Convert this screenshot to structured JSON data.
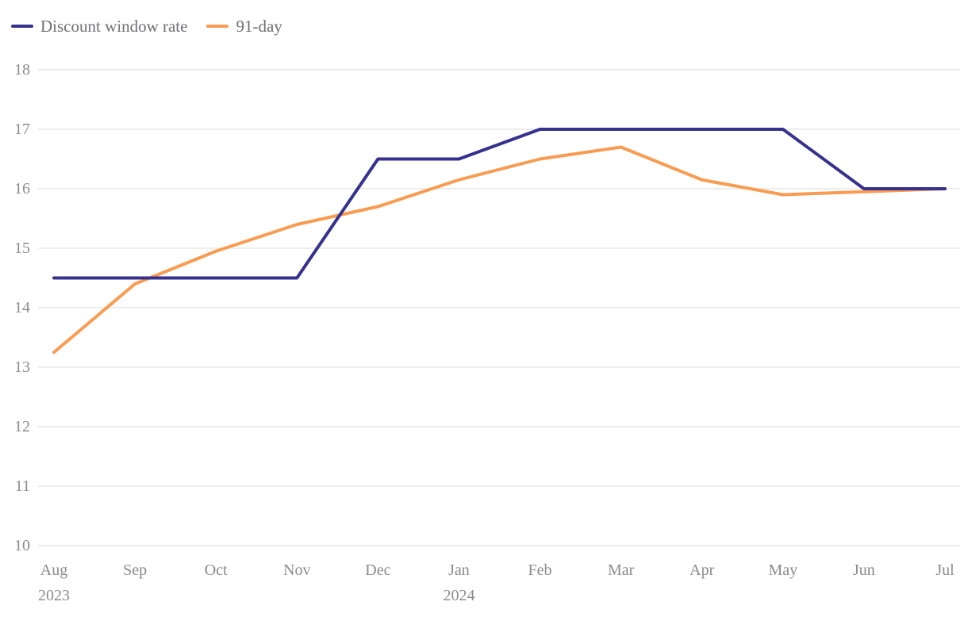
{
  "chart_data": {
    "type": "line",
    "title": "",
    "xlabel": "",
    "ylabel": "",
    "categories": [
      {
        "label": "Aug",
        "sublabel": "2023"
      },
      {
        "label": "Sep"
      },
      {
        "label": "Oct"
      },
      {
        "label": "Nov"
      },
      {
        "label": "Dec"
      },
      {
        "label": "Jan",
        "sublabel": "2024"
      },
      {
        "label": "Feb"
      },
      {
        "label": "Mar"
      },
      {
        "label": "Apr"
      },
      {
        "label": "May"
      },
      {
        "label": "Jun"
      },
      {
        "label": "Jul"
      }
    ],
    "series": [
      {
        "name": "Discount window rate",
        "color": "#37318e",
        "values": [
          14.5,
          14.5,
          14.5,
          14.5,
          16.5,
          16.5,
          17,
          17,
          17,
          17,
          16,
          16
        ]
      },
      {
        "name": "91-day",
        "color": "#f99c52",
        "values": [
          13.25,
          14.4,
          14.95,
          15.4,
          15.7,
          16.15,
          16.5,
          16.7,
          16.15,
          15.9,
          15.95,
          16
        ]
      }
    ],
    "ylim": [
      10,
      18
    ],
    "yticks": [
      18,
      17,
      16,
      15,
      14,
      13,
      12,
      11,
      10
    ],
    "grid": "horizontal",
    "legend_position": "top-left",
    "axis": {
      "tick_color": "#8b8b90",
      "grid_color": "#e7e7e7"
    },
    "legend_text_color": "#6f6f74"
  }
}
